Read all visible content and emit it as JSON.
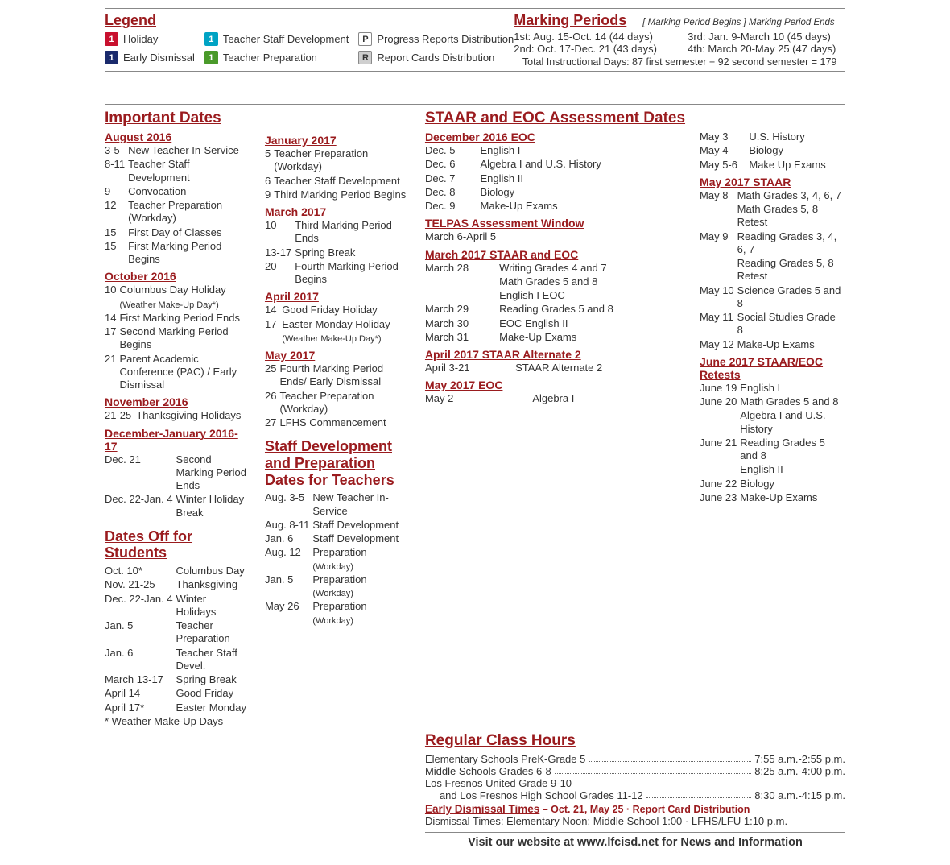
{
  "colors": {
    "maroon": "#9a1b1e",
    "red": "#c8102e",
    "navy": "#1a2a6c",
    "cyan": "#00a3c4",
    "green": "#4a9a2a",
    "gray": "#bdbdbd",
    "lightgray": "#cfcfcf"
  },
  "legend": {
    "title": "Legend",
    "items": [
      {
        "swatch_bg": "#c8102e",
        "swatch_txt": "1",
        "label": "Holiday"
      },
      {
        "swatch_bg": "#1a2a6c",
        "swatch_txt": "1",
        "label": "Early Dismissal"
      },
      {
        "swatch_bg": "#00a3c4",
        "swatch_txt": "1",
        "label": "Teacher Staff Development"
      },
      {
        "swatch_bg": "#4a9a2a",
        "swatch_txt": "1",
        "label": "Teacher Preparation"
      },
      {
        "swatch_outline": true,
        "swatch_txt": "P",
        "label": "Progress Reports Distribution"
      },
      {
        "swatch_outline": true,
        "swatch_bg": "#cfcfcf",
        "swatch_txt": "R",
        "label": "Report Cards Distribution"
      }
    ]
  },
  "marking_periods": {
    "title": "Marking Periods",
    "note": "[ Marking Period Begins  ] Marking Period Ends",
    "rows": [
      "1st: Aug. 15-Oct. 14 (44 days)",
      "3rd: Jan. 9-March 10 (45 days)",
      "2nd: Oct. 17-Dec. 21 (43 days)",
      "4th: March 20-May 25 (47 days)"
    ],
    "total": "Total Instructional Days: 87 first semester + 92 second semester = 179"
  },
  "important_dates": {
    "title": "Important Dates",
    "months_left": [
      {
        "name": "August 2016",
        "rows": [
          [
            "3-5",
            "New Teacher In-Service"
          ],
          [
            "8-11",
            "Teacher Staff Development"
          ],
          [
            "9",
            "Convocation"
          ],
          [
            "12",
            "Teacher Preparation (Workday)"
          ],
          [
            "15",
            "First Day of Classes"
          ],
          [
            "15",
            "First Marking Period Begins"
          ]
        ]
      },
      {
        "name": "October 2016",
        "rows": [
          [
            "10",
            "Columbus Day Holiday"
          ],
          [
            "",
            "(Weather Make-Up Day*)",
            "note"
          ],
          [
            "14",
            "First Marking Period Ends"
          ],
          [
            "17",
            "Second Marking Period Begins"
          ],
          [
            "21",
            "Parent Academic Conference (PAC) / Early Dismissal"
          ]
        ]
      },
      {
        "name": "November 2016",
        "rows": [
          [
            "21-25",
            "Thanksgiving Holidays"
          ]
        ]
      },
      {
        "name": "December-January 2016-17",
        "rows": [
          [
            "Dec. 21",
            "Second Marking Period Ends"
          ],
          [
            "Dec. 22-Jan. 4",
            "Winter Holiday Break"
          ]
        ]
      }
    ],
    "months_right": [
      {
        "name": "January 2017",
        "rows": [
          [
            "5",
            "Teacher Preparation (Workday)"
          ],
          [
            "6",
            "Teacher Staff Development"
          ],
          [
            "9",
            "Third Marking Period Begins"
          ]
        ]
      },
      {
        "name": "March 2017",
        "rows": [
          [
            "10",
            "Third Marking Period Ends"
          ],
          [
            "13-17",
            "Spring Break"
          ],
          [
            "20",
            "Fourth Marking Period Begins"
          ]
        ]
      },
      {
        "name": "April 2017",
        "rows": [
          [
            "14",
            "Good Friday Holiday"
          ],
          [
            "17",
            "Easter Monday Holiday"
          ],
          [
            "",
            "(Weather Make-Up Day*)",
            "note"
          ]
        ]
      },
      {
        "name": "May 2017",
        "rows": [
          [
            "25",
            "Fourth Marking Period Ends/ Early Dismissal"
          ],
          [
            "26",
            "Teacher Preparation (Workday)"
          ],
          [
            "27",
            "LFHS Commencement"
          ]
        ]
      }
    ]
  },
  "dates_off": {
    "title": "Dates Off for Students",
    "rows": [
      [
        "Oct. 10*",
        "Columbus Day"
      ],
      [
        "Nov. 21-25",
        "Thanksgiving"
      ],
      [
        "Dec. 22-Jan. 4",
        "Winter Holidays"
      ],
      [
        "Jan. 5",
        "Teacher Preparation"
      ],
      [
        "Jan. 6",
        "Teacher Staff Devel."
      ],
      [
        "March 13-17",
        "Spring Break"
      ],
      [
        "April 14",
        "Good Friday"
      ],
      [
        "April 17*",
        "Easter Monday"
      ]
    ],
    "footnote": "* Weather Make-Up Days"
  },
  "staff_dev": {
    "title": "Staff Development and Preparation Dates for Teachers",
    "rows": [
      [
        "Aug. 3-5",
        "New Teacher In-Service"
      ],
      [
        "Aug. 8-11",
        "Staff Development"
      ],
      [
        "Jan. 6",
        "Staff Development"
      ],
      [
        "Aug. 12",
        "Preparation",
        "(Workday)"
      ],
      [
        "Jan. 5",
        "Preparation",
        "(Workday)"
      ],
      [
        "May 26",
        "Preparation",
        "(Workday)"
      ]
    ]
  },
  "staar": {
    "title": "STAAR and EOC Assessment Dates",
    "sections_left": [
      {
        "name": "December 2016 EOC",
        "rows": [
          [
            "Dec. 5",
            "English I"
          ],
          [
            "Dec. 6",
            "Algebra I and U.S. History"
          ],
          [
            "Dec. 7",
            "English II"
          ],
          [
            "Dec. 8",
            "Biology"
          ],
          [
            "Dec. 9",
            "Make-Up Exams"
          ]
        ]
      },
      {
        "name": "TELPAS Assessment Window",
        "rows": [
          [
            "March 6-April 5",
            ""
          ]
        ]
      },
      {
        "name": "March 2017 STAAR and EOC",
        "rows": [
          [
            "March 28",
            "Writing Grades 4 and 7"
          ],
          [
            "",
            "Math Grades 5 and 8"
          ],
          [
            "",
            "English I EOC"
          ],
          [
            "March 29",
            "Reading Grades 5 and 8"
          ],
          [
            "March 30",
            "EOC English II"
          ],
          [
            "March 31",
            "Make-Up Exams"
          ]
        ]
      },
      {
        "name": "April 2017 STAAR Alternate 2",
        "rows": [
          [
            "April 3-21",
            "STAAR Alternate 2"
          ]
        ]
      },
      {
        "name": "May 2017 EOC",
        "rows": [
          [
            "May 2",
            "Algebra I"
          ]
        ]
      }
    ],
    "sections_right_top": [
      [
        "May 3",
        "U.S. History"
      ],
      [
        "May 4",
        "Biology"
      ],
      [
        "May 5-6",
        "Make Up Exams"
      ]
    ],
    "sections_right": [
      {
        "name": "May 2017 STAAR",
        "rows": [
          [
            "May 8",
            "Math Grades 3, 4, 6, 7"
          ],
          [
            "",
            "Math Grades 5, 8 Retest"
          ],
          [
            "May 9",
            "Reading Grades 3, 4, 6, 7"
          ],
          [
            "",
            "Reading Grades 5, 8 Retest"
          ],
          [
            "May 10",
            "Science Grades 5 and 8"
          ],
          [
            "May 11",
            "Social Studies Grade 8"
          ],
          [
            "May 12",
            "Make-Up Exams"
          ]
        ]
      },
      {
        "name": "June 2017 STAAR/EOC Retests",
        "rows": [
          [
            "June 19",
            "English I"
          ],
          [
            "June 20",
            "Math Grades 5 and 8"
          ],
          [
            "",
            "Algebra I and U.S. History"
          ],
          [
            "June 21",
            "Reading Grades 5 and 8"
          ],
          [
            "",
            "English II"
          ],
          [
            "June 22",
            "Biology"
          ],
          [
            "June 23",
            "Make-Up Exams"
          ]
        ]
      }
    ]
  },
  "class_hours": {
    "title": "Regular Class Hours",
    "rows": [
      {
        "lbl": "Elementary Schools PreK-Grade 5",
        "val": "7:55 a.m.-2:55 p.m."
      },
      {
        "lbl": "Middle Schools Grades 6-8",
        "val": "8:25 a.m.-4:00 p.m."
      },
      {
        "lbl": "Los Fresnos United Grade 9-10",
        "val": ""
      },
      {
        "lbl": "   and Los Fresnos High School Grades 11-12",
        "val": "8:30 a.m.-4:15 p.m.",
        "indent": true
      }
    ],
    "early_title": "Early Dismissal Times",
    "early_sub": " – Oct. 21, May 25 · Report Card Distribution",
    "early_text": "Dismissal Times: Elementary Noon; Middle School 1:00 · LFHS/LFU 1:10 p.m."
  },
  "footer": "Visit our website at www.lfcisd.net for News and Information"
}
